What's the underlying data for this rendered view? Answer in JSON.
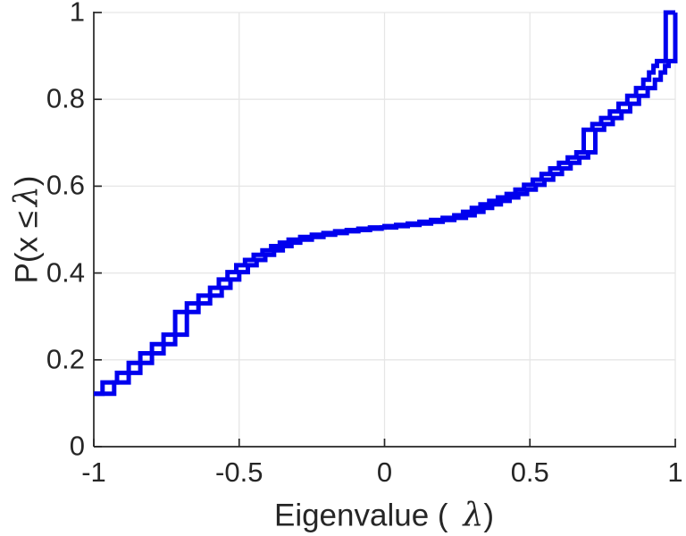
{
  "figure": {
    "background": "#ffffff"
  },
  "chart_data": {
    "type": "line",
    "subtype": "ecdf-staircase",
    "title": "",
    "xlabel": "Eigenvalue ( λ)",
    "xlabel_parts": {
      "prefix": "Eigenvalue (",
      "lambda": "λ",
      "suffix": ")"
    },
    "ylabel": "P(x ≤ λ)",
    "ylabel_parts": {
      "prefix": "P(x ≤",
      "lambda": "λ",
      "suffix": ")"
    },
    "xlim": [
      -1,
      1
    ],
    "ylim": [
      0,
      1
    ],
    "xticks": [
      -1,
      -0.5,
      0,
      0.5,
      1
    ],
    "xtick_labels": [
      "-1",
      "-0.5",
      "0",
      "0.5",
      "1"
    ],
    "yticks": [
      0,
      0.2,
      0.4,
      0.6,
      0.8,
      1
    ],
    "ytick_labels": [
      "0",
      "0.2",
      "0.4",
      "0.6",
      "0.8",
      "1"
    ],
    "grid": true,
    "legend": null,
    "line_color": "#0000EE",
    "line_width": 5,
    "grid_color": "#E6E6E6",
    "axis_color": "#262626",
    "start_point": [
      -1,
      0.122
    ],
    "end_x": 1,
    "step_levels_center": [
      [
        -0.95,
        0.148
      ],
      [
        -0.9,
        0.17
      ],
      [
        -0.86,
        0.193
      ],
      [
        -0.82,
        0.215
      ],
      [
        -0.78,
        0.236
      ],
      [
        -0.74,
        0.258
      ],
      [
        -0.7,
        0.31
      ],
      [
        -0.66,
        0.33
      ],
      [
        -0.62,
        0.348
      ],
      [
        -0.58,
        0.366
      ],
      [
        -0.55,
        0.385
      ],
      [
        -0.52,
        0.402
      ],
      [
        -0.49,
        0.418
      ],
      [
        -0.46,
        0.43
      ],
      [
        -0.43,
        0.442
      ],
      [
        -0.4,
        0.452
      ],
      [
        -0.37,
        0.462
      ],
      [
        -0.34,
        0.47
      ],
      [
        -0.31,
        0.477
      ],
      [
        -0.27,
        0.483
      ],
      [
        -0.23,
        0.488
      ],
      [
        -0.19,
        0.492
      ],
      [
        -0.15,
        0.496
      ],
      [
        -0.11,
        0.499
      ],
      [
        -0.07,
        0.502
      ],
      [
        -0.03,
        0.505
      ],
      [
        0.02,
        0.508
      ],
      [
        0.06,
        0.511
      ],
      [
        0.1,
        0.514
      ],
      [
        0.14,
        0.518
      ],
      [
        0.18,
        0.522
      ],
      [
        0.22,
        0.527
      ],
      [
        0.26,
        0.533
      ],
      [
        0.29,
        0.541
      ],
      [
        0.32,
        0.55
      ],
      [
        0.35,
        0.558
      ],
      [
        0.38,
        0.566
      ],
      [
        0.41,
        0.574
      ],
      [
        0.44,
        0.582
      ],
      [
        0.47,
        0.592
      ],
      [
        0.5,
        0.603
      ],
      [
        0.53,
        0.615
      ],
      [
        0.56,
        0.628
      ],
      [
        0.59,
        0.641
      ],
      [
        0.62,
        0.654
      ],
      [
        0.65,
        0.666
      ],
      [
        0.68,
        0.678
      ],
      [
        0.705,
        0.73
      ],
      [
        0.735,
        0.743
      ],
      [
        0.765,
        0.757
      ],
      [
        0.795,
        0.772
      ],
      [
        0.825,
        0.79
      ],
      [
        0.855,
        0.808
      ],
      [
        0.885,
        0.826
      ],
      [
        0.91,
        0.845
      ],
      [
        0.93,
        0.862
      ],
      [
        0.945,
        0.877
      ],
      [
        0.957,
        0.888
      ]
    ],
    "series": [
      {
        "name": "ecdf-stair-early",
        "x_offset": -0.02,
        "final_jump": [
          0.967,
          1.0
        ]
      },
      {
        "name": "ecdf-stair-late",
        "x_offset": 0.02,
        "final_jump": [
          1.0,
          1.0
        ]
      }
    ]
  }
}
